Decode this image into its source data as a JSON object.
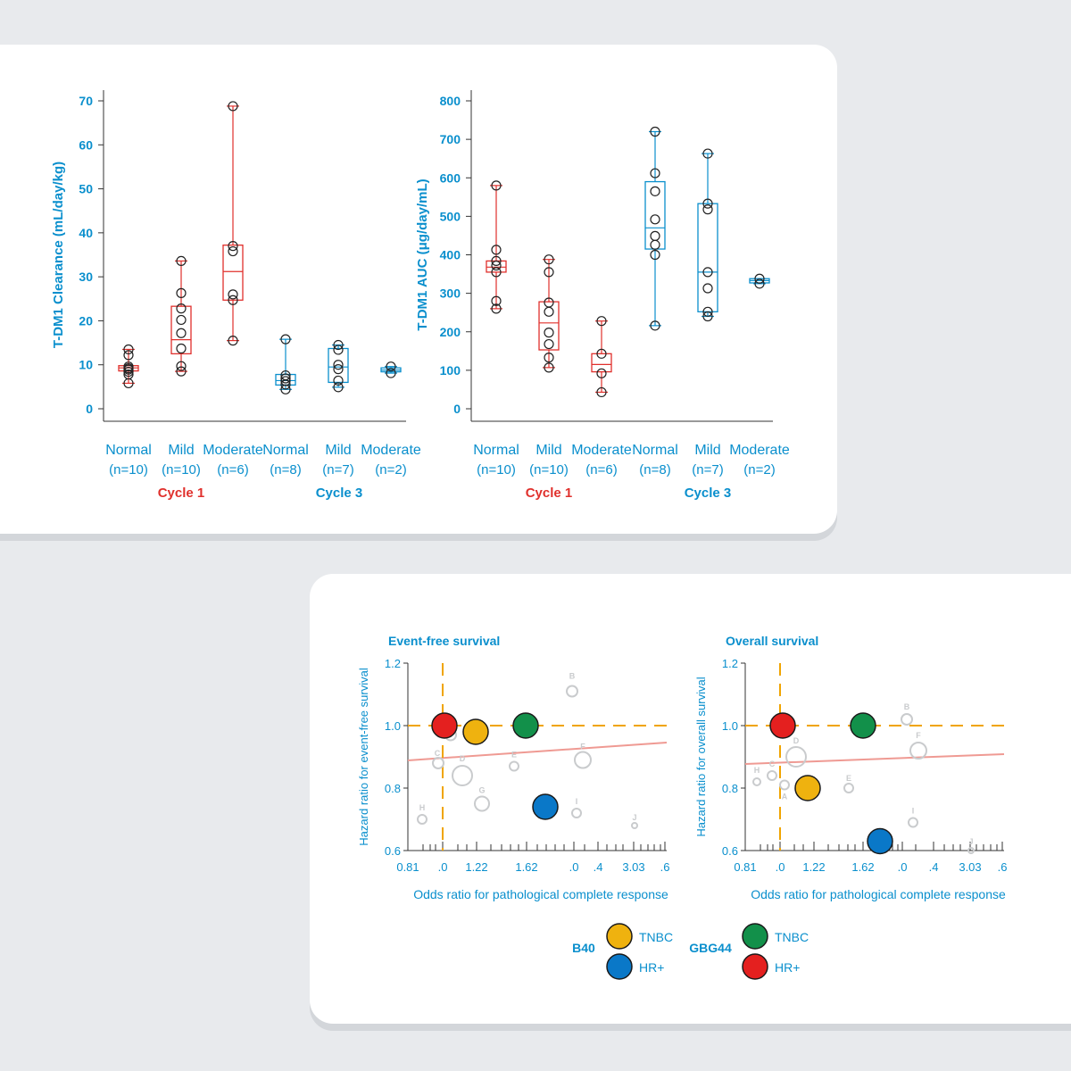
{
  "colors": {
    "blue": "#0a8fcd",
    "red": "#e0302c",
    "orange": "#f0a400",
    "dashed": "#f0a400",
    "trend": "#ef9a93",
    "gray": "#c9cbcd",
    "b40_tnbc": "#efb20f",
    "b40_hr": "#0a78c8",
    "gbg_tnbc": "#12904a",
    "gbg_hr": "#e4201f"
  },
  "chart_data": [
    {
      "type": "box",
      "ylabel": "T-DM1 Clearance (mL/day/kg)",
      "ylim": [
        0,
        70
      ],
      "yticks": [
        0,
        10,
        20,
        30,
        40,
        50,
        60,
        70
      ],
      "groups": [
        {
          "label": "Normal",
          "n": "(n=10)",
          "cycle": "Cycle 1",
          "min": 5.8,
          "q1": 8.6,
          "median": 9.3,
          "q3": 9.8,
          "max": 13.5,
          "points": [
            5.8,
            7.8,
            8.4,
            8.9,
            9.2,
            9.6,
            12.2,
            13.5
          ]
        },
        {
          "label": "Mild",
          "n": "(n=10)",
          "cycle": "Cycle 1",
          "min": 8.5,
          "q1": 12.5,
          "median": 15.7,
          "q3": 23.3,
          "max": 33.6,
          "points": [
            8.5,
            9.7,
            13.7,
            17.2,
            20.2,
            22.8,
            26.3,
            33.6
          ]
        },
        {
          "label": "Moderate",
          "n": "(n=6)",
          "cycle": "Cycle 1",
          "min": 15.5,
          "q1": 24.7,
          "median": 31.2,
          "q3": 37.2,
          "max": 68.8,
          "points": [
            15.5,
            24.7,
            26.0,
            35.8,
            37.0,
            68.8
          ]
        },
        {
          "label": "Normal",
          "n": "(n=8)",
          "cycle": "Cycle 3",
          "min": 4.4,
          "q1": 5.4,
          "median": 6.4,
          "q3": 7.8,
          "max": 15.8,
          "points": [
            4.4,
            5.5,
            6.3,
            6.9,
            7.6,
            15.8
          ]
        },
        {
          "label": "Mild",
          "n": "(n=7)",
          "cycle": "Cycle 3",
          "min": 4.9,
          "q1": 6.0,
          "median": 9.5,
          "q3": 13.7,
          "max": 14.5,
          "points": [
            4.9,
            6.4,
            9.0,
            10.0,
            13.4,
            14.5
          ]
        },
        {
          "label": "Moderate",
          "n": "(n=2)",
          "cycle": "Cycle 3",
          "min": 8.1,
          "q1": 8.4,
          "median": 8.8,
          "q3": 9.3,
          "max": 9.6,
          "points": [
            8.1,
            9.6
          ]
        }
      ]
    },
    {
      "type": "box",
      "ylabel": "T-DM1 AUC (μg/day/mL)",
      "ylim": [
        0,
        800
      ],
      "yticks": [
        0,
        100,
        200,
        300,
        400,
        500,
        600,
        700,
        800
      ],
      "groups": [
        {
          "label": "Normal",
          "n": "(n=10)",
          "cycle": "Cycle 1",
          "min": 260,
          "q1": 355,
          "median": 368,
          "q3": 384,
          "max": 580,
          "points": [
            260,
            280,
            355,
            372,
            384,
            413,
            580
          ]
        },
        {
          "label": "Mild",
          "n": "(n=10)",
          "cycle": "Cycle 1",
          "min": 107,
          "q1": 153,
          "median": 223,
          "q3": 278,
          "max": 388,
          "points": [
            107,
            133,
            168,
            198,
            252,
            276,
            355,
            388
          ]
        },
        {
          "label": "Moderate",
          "n": "(n=6)",
          "cycle": "Cycle 1",
          "min": 43,
          "q1": 96,
          "median": 115,
          "q3": 143,
          "max": 228,
          "points": [
            43,
            92,
            143,
            228
          ]
        },
        {
          "label": "Normal",
          "n": "(n=8)",
          "cycle": "Cycle 3",
          "min": 216,
          "q1": 415,
          "median": 470,
          "q3": 590,
          "max": 720,
          "points": [
            216,
            400,
            426,
            449,
            492,
            565,
            612,
            720
          ]
        },
        {
          "label": "Mild",
          "n": "(n=7)",
          "cycle": "Cycle 3",
          "min": 240,
          "q1": 252,
          "median": 355,
          "q3": 533,
          "max": 663,
          "points": [
            240,
            252,
            313,
            355,
            518,
            533,
            663
          ]
        },
        {
          "label": "Moderate",
          "n": "(n=2)",
          "cycle": "Cycle 3",
          "min": 325,
          "q1": 327,
          "median": 333,
          "q3": 338,
          "max": 338,
          "points": [
            325,
            338
          ]
        }
      ]
    },
    {
      "type": "scatter",
      "title": "Event-free survival",
      "xlabel": "Odds ratio for pathological complete response",
      "ylabel": "Hazard ratio for event-free survival",
      "ylim": [
        0.6,
        1.2
      ],
      "yticks": [
        "0.6",
        "0.8",
        "1.0",
        "1.2"
      ],
      "xticks": [
        "0.81",
        ".0",
        "1.22",
        "1.62",
        ".0",
        ".4",
        "3.03",
        ".6"
      ],
      "reference": {
        "x": ".0",
        "y": "1.0"
      },
      "gray_points": [
        {
          "label": "A",
          "y": 0.97
        },
        {
          "label": "B",
          "y": 1.11
        },
        {
          "label": "C",
          "y": 0.88
        },
        {
          "label": "D",
          "y": 0.84
        },
        {
          "label": "E",
          "y": 0.87
        },
        {
          "label": "F",
          "y": 0.89
        },
        {
          "label": "G",
          "y": 0.75
        },
        {
          "label": "H",
          "y": 0.7
        },
        {
          "label": "I",
          "y": 0.72
        },
        {
          "label": "J",
          "y": 0.68
        }
      ],
      "trials": [
        {
          "study": "GBG44",
          "subgroup": "HR+",
          "y": 1.0
        },
        {
          "study": "B40",
          "subgroup": "TNBC",
          "y": 0.98
        },
        {
          "study": "GBG44",
          "subgroup": "TNBC",
          "y": 1.0
        },
        {
          "study": "B40",
          "subgroup": "HR+",
          "y": 0.74
        }
      ]
    },
    {
      "type": "scatter",
      "title": "Overall survival",
      "xlabel": "Odds ratio for pathological complete response",
      "ylabel": "Hazard ratio for overall survival",
      "ylim": [
        0.6,
        1.2
      ],
      "yticks": [
        "0.6",
        "0.8",
        "1.0",
        "1.2"
      ],
      "xticks": [
        "0.81",
        ".0",
        "1.22",
        "1.62",
        ".0",
        ".4",
        "3.03",
        ".6"
      ],
      "reference": {
        "x": ".0",
        "y": "1.0"
      },
      "gray_points": [
        {
          "label": "A",
          "y": 0.81
        },
        {
          "label": "B",
          "y": 1.02
        },
        {
          "label": "C",
          "y": 0.84
        },
        {
          "label": "D",
          "y": 0.9
        },
        {
          "label": "E",
          "y": 0.8
        },
        {
          "label": "F",
          "y": 0.92
        },
        {
          "label": "H",
          "y": 0.82
        },
        {
          "label": "I",
          "y": 0.69
        },
        {
          "label": "J",
          "y": 0.6
        }
      ],
      "trials": [
        {
          "study": "GBG44",
          "subgroup": "HR+",
          "y": 1.0
        },
        {
          "study": "GBG44",
          "subgroup": "TNBC",
          "y": 1.0
        },
        {
          "study": "B40",
          "subgroup": "TNBC",
          "y": 0.8
        },
        {
          "study": "B40",
          "subgroup": "HR+",
          "y": 0.63
        }
      ]
    }
  ],
  "legend": {
    "b40": {
      "name": "B40",
      "tnbc": "TNBC",
      "hr": "HR+"
    },
    "gbg44": {
      "name": "GBG44",
      "tnbc": "TNBC",
      "hr": "HR+"
    }
  }
}
